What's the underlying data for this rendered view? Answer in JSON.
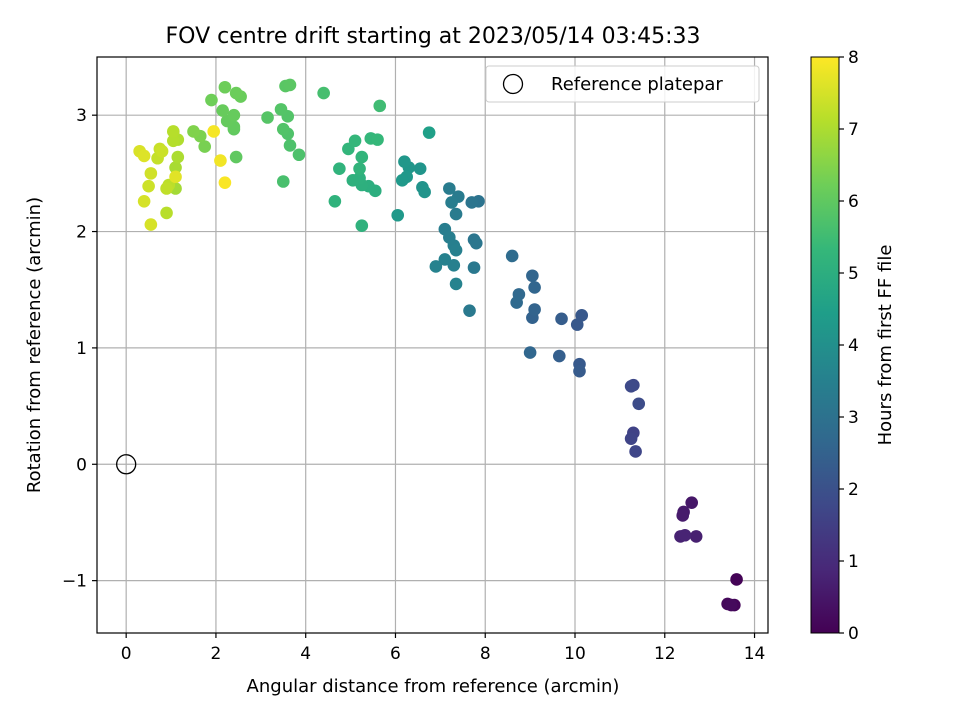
{
  "chart_data": {
    "type": "scatter",
    "title": "FOV centre drift starting at 2023/05/14 03:45:33",
    "xlabel": "Angular distance from reference (arcmin)",
    "ylabel": "Rotation from reference (arcmin)",
    "xlim": [
      -0.65,
      14.3
    ],
    "ylim": [
      -1.45,
      3.5
    ],
    "xticks": [
      0,
      2,
      4,
      6,
      8,
      10,
      12,
      14
    ],
    "yticks": [
      -1,
      0,
      1,
      2,
      3
    ],
    "ytick_labels": [
      "−1",
      "0",
      "1",
      "2",
      "3"
    ],
    "grid": true,
    "legend": {
      "position": "top-right",
      "entries": [
        "Reference platepar"
      ]
    },
    "reference_point": {
      "label": "Reference platepar",
      "x": 0,
      "y": 0,
      "marker": "hollow-circle"
    },
    "colorbar": {
      "label": "Hours from first FF file",
      "min": 0,
      "max": 8,
      "ticks": [
        0,
        1,
        2,
        3,
        4,
        5,
        6,
        7,
        8
      ],
      "colormap": "viridis",
      "colors": [
        "#440154",
        "#482878",
        "#3e4989",
        "#31688e",
        "#26828e",
        "#1f9e89",
        "#35b779",
        "#6ece58",
        "#b5de2b",
        "#fde725"
      ]
    },
    "series": [
      {
        "points": [
          {
            "x": 13.6,
            "y": -0.99,
            "t": 0.05
          },
          {
            "x": 13.55,
            "y": -1.21,
            "t": 0.1
          },
          {
            "x": 13.4,
            "y": -1.2,
            "t": 0.15
          },
          {
            "x": 13.48,
            "y": -1.21,
            "t": 0.2
          },
          {
            "x": 12.6,
            "y": -0.33,
            "t": 0.5
          },
          {
            "x": 12.42,
            "y": -0.41,
            "t": 0.55
          },
          {
            "x": 12.4,
            "y": -0.44,
            "t": 0.6
          },
          {
            "x": 12.7,
            "y": -0.62,
            "t": 0.7
          },
          {
            "x": 12.35,
            "y": -0.62,
            "t": 0.75
          },
          {
            "x": 12.45,
            "y": -0.61,
            "t": 0.8
          },
          {
            "x": 11.3,
            "y": 0.27,
            "t": 1.6
          },
          {
            "x": 11.25,
            "y": 0.22,
            "t": 1.65
          },
          {
            "x": 11.35,
            "y": 0.11,
            "t": 1.7
          },
          {
            "x": 11.3,
            "y": 0.68,
            "t": 1.75
          },
          {
            "x": 11.25,
            "y": 0.67,
            "t": 1.8
          },
          {
            "x": 11.42,
            "y": 0.52,
            "t": 1.85
          },
          {
            "x": 10.15,
            "y": 1.28,
            "t": 2.2
          },
          {
            "x": 10.05,
            "y": 1.2,
            "t": 2.22
          },
          {
            "x": 10.1,
            "y": 0.86,
            "t": 2.25
          },
          {
            "x": 10.1,
            "y": 0.8,
            "t": 2.28
          },
          {
            "x": 9.7,
            "y": 1.25,
            "t": 2.35
          },
          {
            "x": 9.65,
            "y": 0.93,
            "t": 2.4
          },
          {
            "x": 9.05,
            "y": 1.26,
            "t": 2.5
          },
          {
            "x": 9.1,
            "y": 1.33,
            "t": 2.55
          },
          {
            "x": 9.05,
            "y": 1.62,
            "t": 2.6
          },
          {
            "x": 9.1,
            "y": 1.52,
            "t": 2.62
          },
          {
            "x": 9.0,
            "y": 0.96,
            "t": 2.65
          },
          {
            "x": 8.75,
            "y": 1.46,
            "t": 2.7
          },
          {
            "x": 8.7,
            "y": 1.39,
            "t": 2.75
          },
          {
            "x": 8.6,
            "y": 1.79,
            "t": 2.8
          },
          {
            "x": 7.85,
            "y": 2.26,
            "t": 3.05
          },
          {
            "x": 7.7,
            "y": 2.25,
            "t": 3.1
          },
          {
            "x": 7.75,
            "y": 1.93,
            "t": 3.12
          },
          {
            "x": 7.8,
            "y": 1.9,
            "t": 3.15
          },
          {
            "x": 7.75,
            "y": 1.69,
            "t": 3.2
          },
          {
            "x": 7.65,
            "y": 1.32,
            "t": 3.25
          },
          {
            "x": 7.35,
            "y": 2.15,
            "t": 3.3
          },
          {
            "x": 7.4,
            "y": 2.3,
            "t": 3.32
          },
          {
            "x": 7.2,
            "y": 2.37,
            "t": 3.35
          },
          {
            "x": 7.25,
            "y": 2.25,
            "t": 3.38
          },
          {
            "x": 7.1,
            "y": 2.02,
            "t": 3.4
          },
          {
            "x": 7.2,
            "y": 1.95,
            "t": 3.42
          },
          {
            "x": 7.3,
            "y": 1.88,
            "t": 3.45
          },
          {
            "x": 7.35,
            "y": 1.84,
            "t": 3.48
          },
          {
            "x": 7.3,
            "y": 1.71,
            "t": 3.5
          },
          {
            "x": 7.1,
            "y": 1.76,
            "t": 3.52
          },
          {
            "x": 6.9,
            "y": 1.7,
            "t": 3.55
          },
          {
            "x": 7.35,
            "y": 1.55,
            "t": 3.58
          },
          {
            "x": 6.6,
            "y": 2.38,
            "t": 4.1
          },
          {
            "x": 6.65,
            "y": 2.34,
            "t": 4.12
          },
          {
            "x": 6.55,
            "y": 2.54,
            "t": 4.15
          },
          {
            "x": 6.3,
            "y": 2.55,
            "t": 4.2
          },
          {
            "x": 6.2,
            "y": 2.6,
            "t": 4.22
          },
          {
            "x": 6.25,
            "y": 2.47,
            "t": 4.25
          },
          {
            "x": 6.15,
            "y": 2.44,
            "t": 4.28
          },
          {
            "x": 6.05,
            "y": 2.14,
            "t": 4.3
          },
          {
            "x": 6.75,
            "y": 2.85,
            "t": 4.5
          },
          {
            "x": 5.55,
            "y": 2.35,
            "t": 5.0
          },
          {
            "x": 5.4,
            "y": 2.39,
            "t": 5.02
          },
          {
            "x": 5.25,
            "y": 2.4,
            "t": 5.05
          },
          {
            "x": 5.2,
            "y": 2.46,
            "t": 5.08
          },
          {
            "x": 5.05,
            "y": 2.44,
            "t": 5.1
          },
          {
            "x": 5.25,
            "y": 2.05,
            "t": 5.12
          },
          {
            "x": 4.65,
            "y": 2.26,
            "t": 5.15
          },
          {
            "x": 4.75,
            "y": 2.54,
            "t": 5.18
          },
          {
            "x": 5.2,
            "y": 2.54,
            "t": 5.2
          },
          {
            "x": 5.25,
            "y": 2.64,
            "t": 5.22
          },
          {
            "x": 4.95,
            "y": 2.71,
            "t": 5.25
          },
          {
            "x": 5.1,
            "y": 2.78,
            "t": 5.28
          },
          {
            "x": 5.45,
            "y": 2.8,
            "t": 5.3
          },
          {
            "x": 5.6,
            "y": 2.79,
            "t": 5.32
          },
          {
            "x": 5.65,
            "y": 3.08,
            "t": 5.5
          },
          {
            "x": 4.4,
            "y": 3.19,
            "t": 5.6
          },
          {
            "x": 3.5,
            "y": 2.43,
            "t": 5.65
          },
          {
            "x": 3.85,
            "y": 2.66,
            "t": 5.7
          },
          {
            "x": 3.65,
            "y": 2.74,
            "t": 5.72
          },
          {
            "x": 3.6,
            "y": 2.84,
            "t": 5.75
          },
          {
            "x": 3.5,
            "y": 2.88,
            "t": 5.78
          },
          {
            "x": 3.6,
            "y": 2.99,
            "t": 5.8
          },
          {
            "x": 3.45,
            "y": 3.05,
            "t": 5.82
          },
          {
            "x": 3.15,
            "y": 2.98,
            "t": 5.85
          },
          {
            "x": 3.55,
            "y": 3.25,
            "t": 5.9
          },
          {
            "x": 3.65,
            "y": 3.26,
            "t": 5.92
          },
          {
            "x": 2.45,
            "y": 2.64,
            "t": 6.0
          },
          {
            "x": 2.4,
            "y": 2.88,
            "t": 6.02
          },
          {
            "x": 2.4,
            "y": 2.9,
            "t": 6.05
          },
          {
            "x": 2.25,
            "y": 2.95,
            "t": 6.08
          },
          {
            "x": 2.4,
            "y": 3.0,
            "t": 6.1
          },
          {
            "x": 2.15,
            "y": 3.04,
            "t": 6.12
          },
          {
            "x": 2.55,
            "y": 3.16,
            "t": 6.15
          },
          {
            "x": 2.45,
            "y": 3.19,
            "t": 6.18
          },
          {
            "x": 2.2,
            "y": 3.24,
            "t": 6.2
          },
          {
            "x": 1.9,
            "y": 3.13,
            "t": 6.22
          },
          {
            "x": 1.75,
            "y": 2.73,
            "t": 6.35
          },
          {
            "x": 1.65,
            "y": 2.82,
            "t": 6.4
          },
          {
            "x": 1.5,
            "y": 2.86,
            "t": 6.45
          },
          {
            "x": 1.1,
            "y": 2.37,
            "t": 6.9
          },
          {
            "x": 1.1,
            "y": 2.55,
            "t": 6.95
          },
          {
            "x": 1.15,
            "y": 2.64,
            "t": 7.0
          },
          {
            "x": 1.15,
            "y": 2.79,
            "t": 7.05
          },
          {
            "x": 1.05,
            "y": 2.78,
            "t": 7.1
          },
          {
            "x": 1.05,
            "y": 2.86,
            "t": 7.12
          },
          {
            "x": 0.9,
            "y": 2.16,
            "t": 7.15
          },
          {
            "x": 0.95,
            "y": 2.4,
            "t": 7.2
          },
          {
            "x": 0.9,
            "y": 2.37,
            "t": 7.25
          },
          {
            "x": 0.7,
            "y": 2.63,
            "t": 7.3
          },
          {
            "x": 0.75,
            "y": 2.71,
            "t": 7.35
          },
          {
            "x": 0.8,
            "y": 2.69,
            "t": 7.38
          },
          {
            "x": 0.5,
            "y": 2.39,
            "t": 7.4
          },
          {
            "x": 0.55,
            "y": 2.5,
            "t": 7.45
          },
          {
            "x": 0.4,
            "y": 2.26,
            "t": 7.5
          },
          {
            "x": 0.55,
            "y": 2.06,
            "t": 7.52
          },
          {
            "x": 0.3,
            "y": 2.69,
            "t": 7.55
          },
          {
            "x": 0.4,
            "y": 2.65,
            "t": 7.6
          },
          {
            "x": 1.1,
            "y": 2.47,
            "t": 7.65
          },
          {
            "x": 2.1,
            "y": 2.61,
            "t": 7.85
          },
          {
            "x": 1.95,
            "y": 2.86,
            "t": 7.9
          },
          {
            "x": 2.2,
            "y": 2.42,
            "t": 7.95
          }
        ]
      }
    ]
  }
}
